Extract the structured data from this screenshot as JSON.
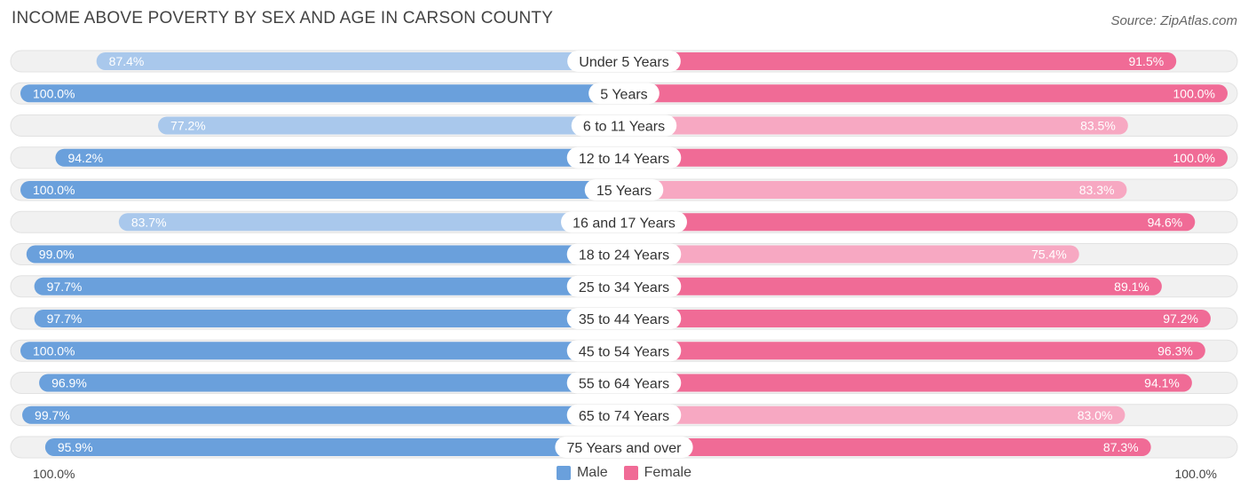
{
  "title": "INCOME ABOVE POVERTY BY SEX AND AGE IN CARSON COUNTY",
  "source": "Source: ZipAtlas.com",
  "axis": {
    "left_label": "100.0%",
    "right_label": "100.0%"
  },
  "legend": {
    "male": "Male",
    "female": "Female"
  },
  "colors": {
    "male_strong": "#6aa0dc",
    "male_light": "#a9c8ec",
    "female_strong": "#f06b96",
    "female_light": "#f7a8c2",
    "track": "#f1f1f1"
  },
  "chart_data": {
    "type": "bar",
    "orientation": "horizontal-diverging",
    "title": "INCOME ABOVE POVERTY BY SEX AND AGE IN CARSON COUNTY",
    "xlim": [
      0,
      100
    ],
    "unit": "%",
    "categories": [
      "Under 5 Years",
      "5 Years",
      "6 to 11 Years",
      "12 to 14 Years",
      "15 Years",
      "16 and 17 Years",
      "18 to 24 Years",
      "25 to 34 Years",
      "35 to 44 Years",
      "45 to 54 Years",
      "55 to 64 Years",
      "65 to 74 Years",
      "75 Years and over"
    ],
    "series": [
      {
        "name": "Male",
        "values": [
          87.4,
          100.0,
          77.2,
          94.2,
          100.0,
          83.7,
          99.0,
          97.7,
          97.7,
          100.0,
          96.9,
          99.7,
          95.9
        ],
        "labels": [
          "87.4%",
          "100.0%",
          "77.2%",
          "94.2%",
          "100.0%",
          "83.7%",
          "99.0%",
          "97.7%",
          "97.7%",
          "100.0%",
          "96.9%",
          "99.7%",
          "95.9%"
        ]
      },
      {
        "name": "Female",
        "values": [
          91.5,
          100.0,
          83.5,
          100.0,
          83.3,
          94.6,
          75.4,
          89.1,
          97.2,
          96.3,
          94.1,
          83.0,
          87.3
        ],
        "labels": [
          "91.5%",
          "100.0%",
          "83.5%",
          "100.0%",
          "83.3%",
          "94.6%",
          "75.4%",
          "89.1%",
          "97.2%",
          "96.3%",
          "94.1%",
          "83.0%",
          "87.3%"
        ]
      }
    ]
  }
}
